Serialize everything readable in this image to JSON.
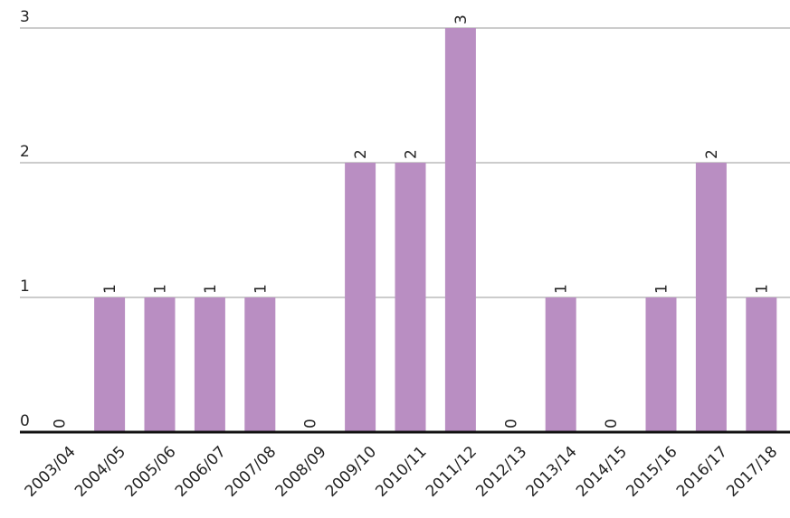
{
  "chart_data": {
    "type": "bar",
    "categories": [
      "2003/04",
      "2004/05",
      "2005/06",
      "2006/07",
      "2007/08",
      "2008/09",
      "2009/10",
      "2010/11",
      "2011/12",
      "2012/13",
      "2013/14",
      "2014/15",
      "2015/16",
      "2016/17",
      "2017/18"
    ],
    "values": [
      0,
      1,
      1,
      1,
      1,
      0,
      2,
      2,
      3,
      0,
      1,
      0,
      1,
      2,
      1
    ],
    "color": "#b98ec2",
    "ylim": [
      0,
      3
    ],
    "yticks": [
      0,
      1,
      2,
      3
    ],
    "grid": true
  }
}
